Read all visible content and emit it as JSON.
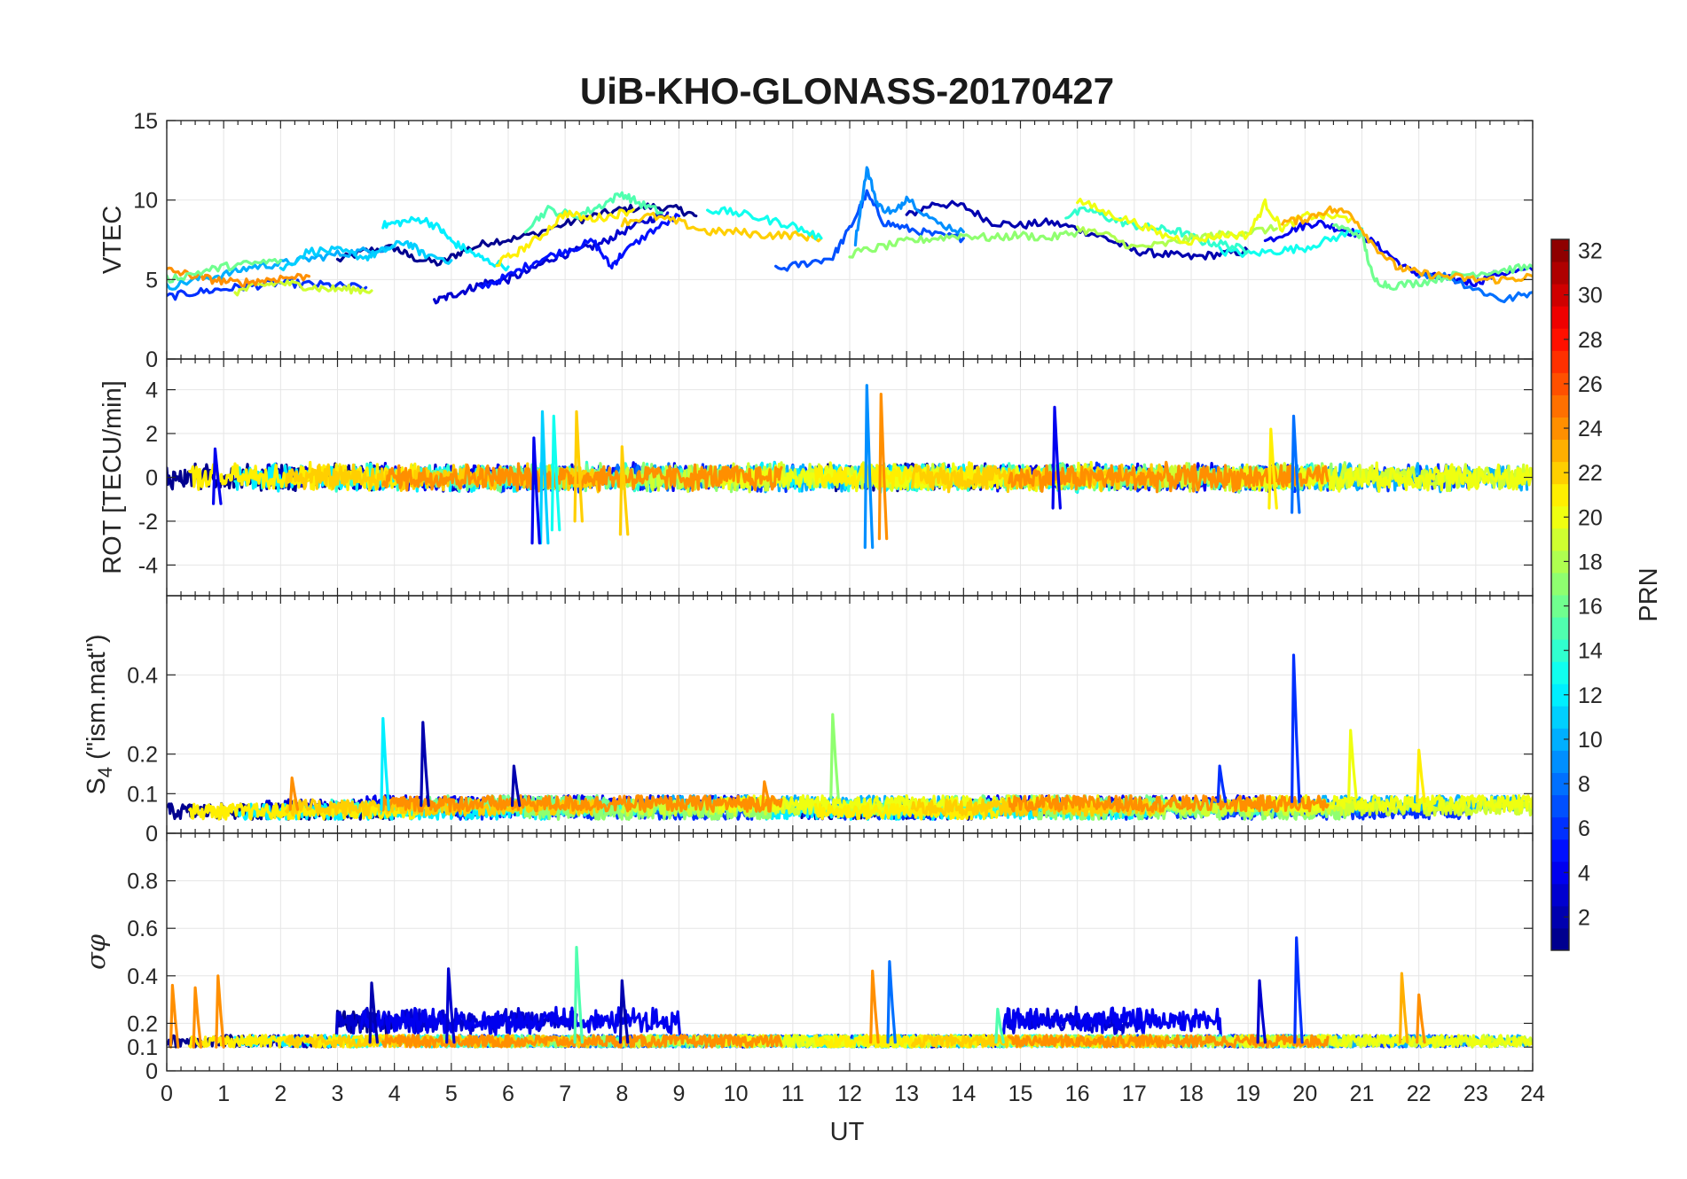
{
  "chart_data": {
    "type": "line",
    "title": "UiB-KHO-GLONASS-20170427",
    "xlabel": "UT",
    "xlim": [
      0,
      24
    ],
    "x_ticks": [
      "0",
      "1",
      "2",
      "3",
      "4",
      "5",
      "6",
      "7",
      "8",
      "9",
      "10",
      "11",
      "12",
      "13",
      "14",
      "15",
      "16",
      "17",
      "18",
      "19",
      "20",
      "21",
      "22",
      "23",
      "24"
    ],
    "grid": true,
    "colorbar": {
      "label": "PRN",
      "colormap": "jet",
      "range": [
        1,
        32
      ],
      "ticks": [
        "2",
        "4",
        "6",
        "8",
        "10",
        "12",
        "14",
        "16",
        "18",
        "20",
        "22",
        "24",
        "26",
        "28",
        "30",
        "32"
      ],
      "position": "right"
    },
    "panels": [
      {
        "id": "vtec",
        "ylabel": "VTEC",
        "ylim": [
          0,
          15
        ],
        "y_ticks": [
          "0",
          "5",
          "10",
          "15"
        ],
        "series": [
          {
            "prn": 1,
            "x": [
              3.0,
              3.5,
              4.0,
              4.3,
              4.8,
              5.2,
              5.7,
              6.2,
              7.0,
              7.5,
              8.0,
              8.5,
              9.0,
              9.3
            ],
            "y": [
              6.2,
              6.8,
              7.0,
              6.4,
              6.0,
              6.8,
              7.4,
              7.6,
              8.5,
              9.0,
              9.4,
              9.6,
              9.4,
              9.0
            ]
          },
          {
            "prn": 2,
            "x": [
              13.0,
              13.5,
              14.0,
              14.5,
              15.0,
              15.5,
              16.0,
              16.5,
              17.0,
              17.5,
              18.0,
              18.5,
              19.0
            ],
            "y": [
              9.0,
              9.8,
              9.6,
              8.6,
              8.4,
              8.6,
              8.2,
              7.6,
              6.8,
              6.6,
              6.4,
              6.6,
              6.8
            ]
          },
          {
            "prn": 3,
            "x": [
              4.7,
              5.0,
              5.3,
              5.6,
              6.0,
              6.4,
              6.8,
              7.2,
              7.6,
              8.0,
              8.5,
              8.8
            ],
            "y": [
              3.6,
              4.0,
              4.4,
              4.8,
              5.0,
              5.6,
              6.4,
              6.8,
              7.2,
              8.0,
              8.8,
              9.2
            ]
          },
          {
            "prn": 4,
            "x": [
              19.3,
              19.8,
              20.2,
              20.6,
              21.0,
              21.4,
              21.8,
              22.2,
              22.6,
              23.0,
              23.4,
              24.0
            ],
            "y": [
              7.4,
              8.2,
              8.6,
              8.2,
              7.8,
              6.8,
              5.6,
              5.2,
              5.0,
              4.8,
              5.4,
              5.6
            ]
          },
          {
            "prn": 5,
            "x": [
              5.5,
              6.0,
              6.5,
              7.0,
              7.5,
              7.8,
              8.0,
              8.5,
              9.0
            ],
            "y": [
              4.5,
              5.2,
              6.2,
              6.8,
              7.4,
              5.8,
              6.6,
              8.0,
              9.0
            ]
          },
          {
            "prn": 6,
            "x": [
              0.0,
              0.5,
              1.0,
              1.5,
              2.0,
              2.5,
              3.0,
              3.5
            ],
            "y": [
              3.9,
              4.2,
              4.4,
              4.6,
              4.8,
              4.7,
              4.6,
              4.5
            ]
          },
          {
            "prn": 7,
            "x": [
              10.7,
              11.2,
              11.7,
              12.0,
              12.3,
              12.6,
              13.0,
              13.5,
              14.0
            ],
            "y": [
              5.6,
              6.0,
              6.4,
              8.2,
              10.4,
              8.6,
              8.2,
              7.8,
              7.6
            ]
          },
          {
            "prn": 8,
            "x": [
              22.0,
              22.5,
              23.0,
              23.5,
              24.0
            ],
            "y": [
              5.4,
              5.2,
              4.4,
              3.7,
              4.2
            ]
          },
          {
            "prn": 9,
            "x": [
              12.1,
              12.3,
              12.5,
              12.8,
              13.0,
              13.5,
              14.0
            ],
            "y": [
              7.4,
              12.0,
              9.6,
              9.2,
              10.2,
              8.6,
              8.0
            ]
          },
          {
            "prn": 10,
            "x": [
              0.0,
              0.5,
              1.0,
              1.5,
              2.0,
              2.5,
              3.0,
              3.5,
              4.0
            ],
            "y": [
              4.5,
              5.0,
              5.3,
              5.8,
              6.0,
              6.3,
              6.6,
              6.8,
              7.1
            ]
          },
          {
            "prn": 11,
            "x": [
              2.0,
              2.5,
              3.0,
              3.5,
              3.8,
              4.2,
              4.5,
              5.0
            ],
            "y": [
              5.6,
              6.8,
              6.8,
              6.4,
              6.8,
              7.4,
              6.6,
              6.2
            ]
          },
          {
            "prn": 12,
            "x": [
              3.8,
              4.1,
              4.5,
              4.8,
              5.0,
              5.3,
              5.6,
              6.0
            ],
            "y": [
              8.4,
              8.6,
              8.8,
              8.2,
              7.4,
              6.8,
              6.2,
              5.8
            ]
          },
          {
            "prn": 13,
            "x": [
              18.5,
              19.0,
              19.5,
              20.0,
              20.5,
              21.0
            ],
            "y": [
              6.8,
              6.6,
              6.8,
              7.0,
              7.6,
              8.2
            ]
          },
          {
            "prn": 14,
            "x": [
              15.8,
              16.2,
              16.6,
              17.0,
              17.4,
              17.8,
              18.2,
              18.6,
              19.0
            ],
            "y": [
              9.0,
              9.4,
              8.8,
              8.4,
              8.2,
              8.0,
              7.4,
              7.2,
              6.8
            ]
          },
          {
            "prn": 15,
            "x": [
              6.3,
              6.7,
              7.2,
              7.6,
              8.0,
              8.3,
              8.7
            ],
            "y": [
              8.2,
              9.4,
              9.0,
              9.6,
              10.4,
              9.8,
              9.2
            ]
          },
          {
            "prn": 16,
            "x": [
              20.5,
              21.0,
              21.2,
              21.5,
              22.0,
              22.5,
              23.0,
              23.5,
              24.0
            ],
            "y": [
              8.4,
              7.8,
              5.0,
              4.6,
              4.8,
              5.2,
              5.4,
              5.6,
              5.8
            ]
          },
          {
            "prn": 17,
            "x": [
              12.0,
              12.5,
              13.0,
              13.5,
              14.0,
              14.5,
              15.0,
              15.5,
              16.0
            ],
            "y": [
              6.6,
              7.0,
              7.4,
              7.6,
              7.8,
              7.6,
              7.8,
              7.6,
              8.0
            ]
          },
          {
            "prn": 18,
            "x": [
              16.0,
              16.5,
              17.0,
              17.5,
              18.0,
              18.5,
              19.0,
              19.5
            ],
            "y": [
              8.2,
              7.8,
              7.0,
              7.2,
              7.6,
              7.8,
              8.0,
              8.2
            ]
          },
          {
            "prn": 19,
            "x": [
              1.2,
              1.6,
              2.0,
              2.4,
              2.8,
              3.2,
              3.6
            ],
            "y": [
              4.2,
              4.6,
              4.8,
              4.6,
              4.4,
              4.4,
              4.3
            ]
          },
          {
            "prn": 20,
            "x": [
              16.0,
              16.5,
              17.0,
              17.5,
              18.0,
              18.5,
              19.0,
              19.3,
              19.6,
              20.0,
              20.4,
              20.8
            ],
            "y": [
              10.0,
              9.2,
              8.6,
              7.8,
              7.4,
              7.8,
              7.8,
              9.8,
              8.2,
              9.0,
              9.0,
              8.8
            ]
          },
          {
            "prn": 21,
            "x": [
              5.8,
              6.2,
              6.6,
              7.0,
              7.4,
              7.8,
              8.2
            ],
            "y": [
              6.0,
              6.8,
              7.8,
              9.2,
              8.8,
              9.0,
              9.4
            ]
          },
          {
            "prn": 22,
            "x": [
              8.0,
              8.5,
              9.0,
              9.5,
              10.0,
              10.5,
              11.0,
              11.5
            ],
            "y": [
              8.6,
              9.0,
              8.6,
              8.0,
              8.0,
              7.8,
              7.8,
              7.6
            ]
          },
          {
            "prn": 23,
            "x": [
              19.6,
              20.0,
              20.4,
              20.8,
              21.2,
              21.6,
              22.0,
              22.5,
              23.0,
              23.5,
              24.0
            ],
            "y": [
              8.6,
              8.8,
              9.4,
              9.2,
              7.2,
              5.8,
              5.4,
              5.2,
              5.0,
              5.0,
              5.2
            ]
          },
          {
            "prn": 24,
            "x": [
              0.0,
              0.4,
              0.8,
              1.2,
              1.6,
              2.0,
              2.5
            ],
            "y": [
              5.6,
              5.3,
              5.0,
              4.8,
              4.9,
              5.1,
              5.2
            ]
          },
          {
            "prn": 13,
            "x": [
              9.5,
              10.0,
              10.5,
              11.0,
              11.5
            ],
            "y": [
              9.4,
              9.2,
              8.8,
              8.4,
              7.6
            ]
          },
          {
            "prn": 16,
            "x": [
              0.0,
              0.5,
              1.0,
              1.5,
              2.0
            ],
            "y": [
              5.0,
              5.4,
              5.8,
              6.0,
              6.2
            ]
          }
        ]
      },
      {
        "id": "rot",
        "ylabel": "ROT [TECU/min]",
        "ylim": [
          -5.4,
          5.4
        ],
        "y_ticks": [
          "-4",
          "-2",
          "0",
          "2",
          "4"
        ],
        "spikes": [
          {
            "prn": 9,
            "x": 12.3,
            "ymin": -3.2,
            "ymax": 4.2
          },
          {
            "prn": 24,
            "x": 12.55,
            "ymin": -2.8,
            "ymax": 3.8
          },
          {
            "prn": 11,
            "x": 6.6,
            "ymin": -3.0,
            "ymax": 3.0
          },
          {
            "prn": 13,
            "x": 6.8,
            "ymin": -2.4,
            "ymax": 2.8
          },
          {
            "prn": 22,
            "x": 7.2,
            "ymin": -2.0,
            "ymax": 3.0
          },
          {
            "prn": 4,
            "x": 6.45,
            "ymin": -3.0,
            "ymax": 1.8
          },
          {
            "prn": 22,
            "x": 8.0,
            "ymin": -2.6,
            "ymax": 1.4
          },
          {
            "prn": 4,
            "x": 15.6,
            "ymin": -1.4,
            "ymax": 3.2
          },
          {
            "prn": 8,
            "x": 19.8,
            "ymin": -1.6,
            "ymax": 2.8
          },
          {
            "prn": 21,
            "x": 19.4,
            "ymin": -1.4,
            "ymax": 2.2
          },
          {
            "prn": 4,
            "x": 0.85,
            "ymin": -1.2,
            "ymax": 1.3
          }
        ]
      },
      {
        "id": "s4",
        "ylabel": "S4 (\"ism.mat\")",
        "ylabel_main": "S",
        "ylabel_sub": "4",
        "ylabel_rest": " (\"ism.mat\")",
        "ylim": [
          0,
          0.6
        ],
        "y_ticks": [
          "0",
          "0.1",
          "0.2",
          "0.4"
        ],
        "spikes": [
          {
            "prn": 12,
            "x": 3.8,
            "ymin": 0.06,
            "ymax": 0.29
          },
          {
            "prn": 2,
            "x": 4.5,
            "ymin": 0.07,
            "ymax": 0.28
          },
          {
            "prn": 2,
            "x": 6.1,
            "ymin": 0.07,
            "ymax": 0.17
          },
          {
            "prn": 17,
            "x": 11.7,
            "ymin": 0.09,
            "ymax": 0.3
          },
          {
            "prn": 6,
            "x": 19.8,
            "ymin": 0.08,
            "ymax": 0.45
          },
          {
            "prn": 20,
            "x": 20.8,
            "ymin": 0.09,
            "ymax": 0.26
          },
          {
            "prn": 21,
            "x": 22.0,
            "ymin": 0.08,
            "ymax": 0.21
          },
          {
            "prn": 6,
            "x": 18.5,
            "ymin": 0.08,
            "ymax": 0.17
          },
          {
            "prn": 24,
            "x": 10.5,
            "ymin": 0.07,
            "ymax": 0.13
          },
          {
            "prn": 24,
            "x": 2.2,
            "ymin": 0.06,
            "ymax": 0.14
          }
        ]
      },
      {
        "id": "sigma_phi",
        "ylabel": "σφ",
        "ylim": [
          0,
          1
        ],
        "y_ticks": [
          "0",
          "0.1",
          "0.2",
          "0.4",
          "0.6",
          "0.8"
        ],
        "spikes": [
          {
            "prn": 24,
            "x": 0.1,
            "ymin": 0.1,
            "ymax": 0.36
          },
          {
            "prn": 24,
            "x": 0.5,
            "ymin": 0.1,
            "ymax": 0.35
          },
          {
            "prn": 24,
            "x": 0.9,
            "ymin": 0.1,
            "ymax": 0.4
          },
          {
            "prn": 3,
            "x": 4.95,
            "ymin": 0.12,
            "ymax": 0.43
          },
          {
            "prn": 15,
            "x": 7.2,
            "ymin": 0.12,
            "ymax": 0.52
          },
          {
            "prn": 2,
            "x": 8.0,
            "ymin": 0.12,
            "ymax": 0.38
          },
          {
            "prn": 24,
            "x": 12.4,
            "ymin": 0.12,
            "ymax": 0.42
          },
          {
            "prn": 8,
            "x": 12.7,
            "ymin": 0.12,
            "ymax": 0.46
          },
          {
            "prn": 6,
            "x": 19.85,
            "ymin": 0.12,
            "ymax": 0.56
          },
          {
            "prn": 3,
            "x": 19.2,
            "ymin": 0.12,
            "ymax": 0.38
          },
          {
            "prn": 23,
            "x": 21.7,
            "ymin": 0.12,
            "ymax": 0.41
          },
          {
            "prn": 24,
            "x": 22.0,
            "ymin": 0.12,
            "ymax": 0.32
          },
          {
            "prn": 15,
            "x": 14.6,
            "ymin": 0.12,
            "ymax": 0.26
          },
          {
            "prn": 2,
            "x": 3.6,
            "ymin": 0.12,
            "ymax": 0.37
          }
        ]
      }
    ]
  }
}
